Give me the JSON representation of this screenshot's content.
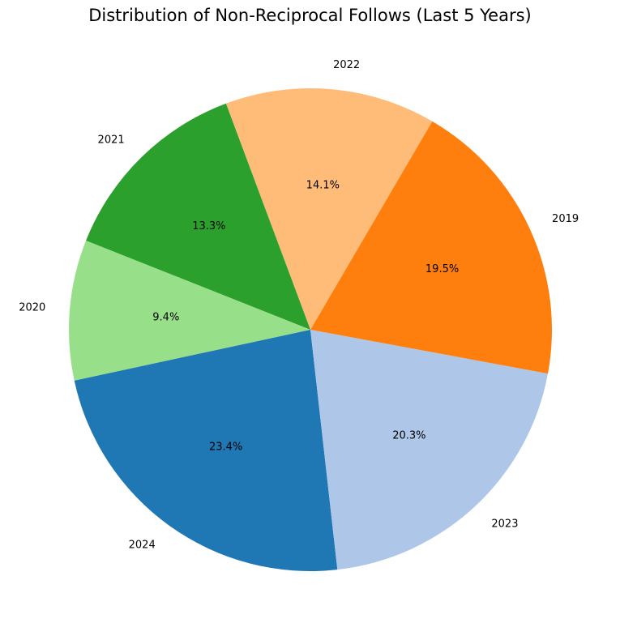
{
  "chart_data": {
    "type": "pie",
    "title": "Distribution of Non-Reciprocal Follows (Last 5 Years)",
    "slices": [
      {
        "label": "2019",
        "value": 19.5,
        "pct_label": "19.5%",
        "color": "#ff7f0e"
      },
      {
        "label": "2022",
        "value": 14.1,
        "pct_label": "14.1%",
        "color": "#ffbb78"
      },
      {
        "label": "2021",
        "value": 13.3,
        "pct_label": "13.3%",
        "color": "#2ca02c"
      },
      {
        "label": "2020",
        "value": 9.4,
        "pct_label": "9.4%",
        "color": "#98df8a"
      },
      {
        "label": "2024",
        "value": 23.4,
        "pct_label": "23.4%",
        "color": "#1f77b4"
      },
      {
        "label": "2023",
        "value": 20.3,
        "pct_label": "20.3%",
        "color": "#aec7e8"
      }
    ]
  }
}
